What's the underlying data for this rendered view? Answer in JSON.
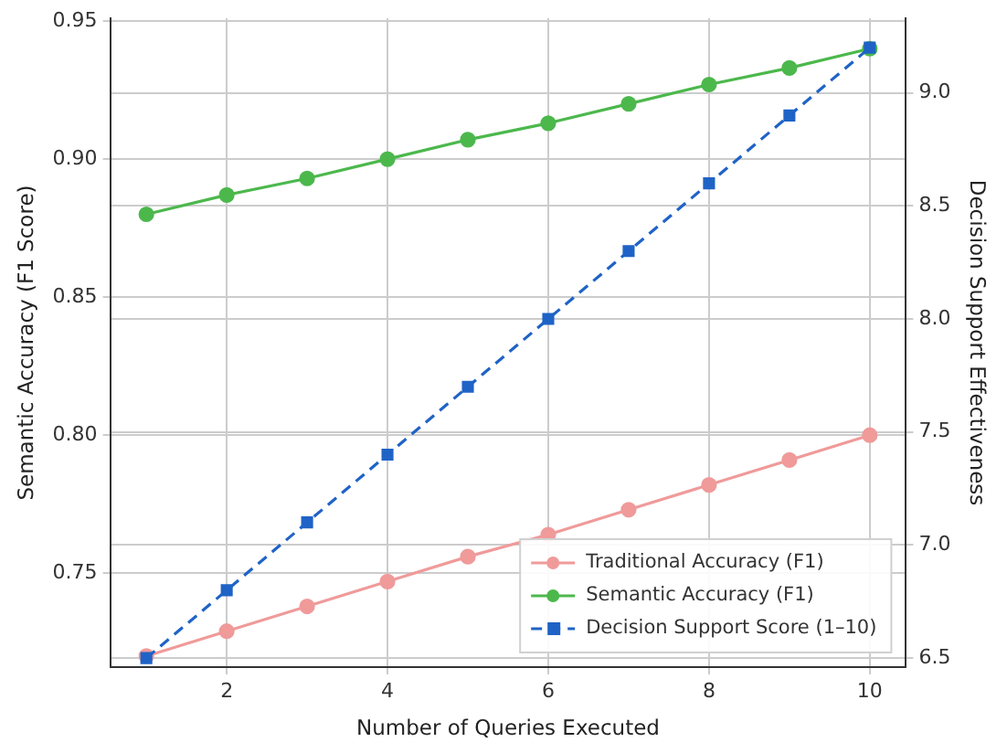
{
  "chart_data": {
    "type": "line",
    "xlabel": "Number of Queries Executed",
    "ylabel": "Semantic Accuracy (F1 Score)",
    "y2label": "Decision Support Effectiveness",
    "x": [
      1,
      2,
      3,
      4,
      5,
      6,
      7,
      8,
      9,
      10
    ],
    "series": [
      {
        "name": "Traditional Accuracy (F1)",
        "color": "#f09a9a",
        "values": [
          0.72,
          0.729,
          0.738,
          0.747,
          0.756,
          0.764,
          0.773,
          0.782,
          0.791,
          0.8
        ],
        "marker": "circle",
        "line_style": "solid"
      },
      {
        "name": "Semantic Accuracy (F1)",
        "color": "#4cb84c",
        "values": [
          0.88,
          0.887,
          0.893,
          0.9,
          0.907,
          0.913,
          0.92,
          0.927,
          0.933,
          0.94
        ],
        "marker": "circle",
        "line_style": "solid"
      },
      {
        "name": "Decision Support Score (1–10)",
        "color": "#1f63c6",
        "values": [
          6.5,
          6.8,
          7.1,
          7.4,
          7.7,
          8.0,
          8.3,
          8.6,
          8.9,
          9.2
        ],
        "axis": "y2",
        "marker": "square",
        "line_style": "dashed"
      }
    ],
    "xlim": [
      0.55,
      10.45
    ],
    "xticks": [
      2,
      4,
      6,
      8,
      10
    ],
    "ylim": [
      0.716,
      0.951
    ],
    "yticks": [
      {
        "value": 0.75,
        "label": "0.75"
      },
      {
        "value": 0.8,
        "label": "0.80"
      },
      {
        "value": 0.85,
        "label": "0.85"
      },
      {
        "value": 0.9,
        "label": "0.90"
      },
      {
        "value": 0.95,
        "label": "0.95"
      }
    ],
    "y2lim": [
      6.46,
      9.33
    ],
    "y2ticks": [
      {
        "value": 6.5,
        "label": "6.5"
      },
      {
        "value": 7,
        "label": "7.0"
      },
      {
        "value": 7.5,
        "label": "7.5"
      },
      {
        "value": 8,
        "label": "8.0"
      },
      {
        "value": 8.5,
        "label": "8.5"
      },
      {
        "value": 9,
        "label": "9.0"
      }
    ],
    "grid": true,
    "legend": "bottom right"
  }
}
